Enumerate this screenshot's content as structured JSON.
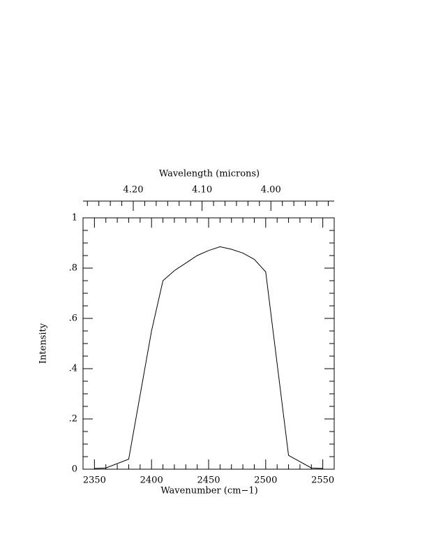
{
  "chart_data": {
    "type": "line",
    "xlabel": "Wavenumber (cm−1)",
    "ylabel": "Intensity",
    "x2label": "Wavelength (microns)",
    "x": [
      2350,
      2360,
      2380,
      2400,
      2410,
      2420,
      2430,
      2440,
      2450,
      2460,
      2470,
      2480,
      2490,
      2500,
      2520,
      2540,
      2550
    ],
    "values": [
      0.003,
      0.005,
      0.04,
      0.55,
      0.75,
      0.79,
      0.82,
      0.85,
      0.87,
      0.885,
      0.875,
      0.86,
      0.835,
      0.785,
      0.055,
      0.005,
      0.003
    ],
    "color": "#000000",
    "xlim": [
      2340,
      2560
    ],
    "xticks": [
      2350,
      2400,
      2450,
      2500,
      2550
    ],
    "ylim": [
      0,
      1
    ],
    "yticks": [
      0,
      {
        "value": 0.2,
        "label": ".2"
      },
      {
        "value": 0.4,
        "label": ".4"
      },
      {
        "value": 0.6,
        "label": ".6"
      },
      {
        "value": 0.8,
        "label": ".8"
      },
      1
    ],
    "x2lim": [
      4.273,
      3.908
    ],
    "x2ticks": [
      {
        "value": 4.2,
        "label": "4.20"
      },
      {
        "value": 4.1,
        "label": "4.10"
      },
      {
        "value": 4.0,
        "label": "4.00"
      }
    ]
  }
}
